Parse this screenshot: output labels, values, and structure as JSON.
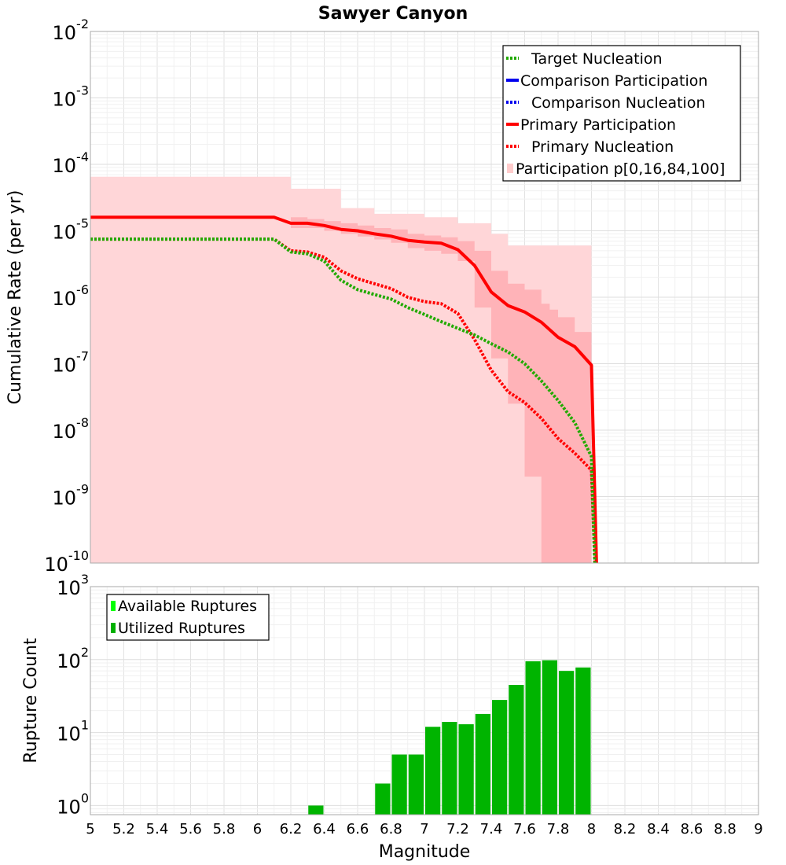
{
  "chart_data": [
    {
      "type": "line",
      "title": "Sawyer Canyon",
      "xlabel": "",
      "ylabel": "Cumulative Rate (per yr)",
      "yscale": "log",
      "xlim": [
        5,
        9
      ],
      "ylim": [
        1e-10,
        0.01
      ],
      "y_tick_labels": [
        {
          "base": "10",
          "exp": "-2"
        },
        {
          "base": "10",
          "exp": "-3"
        },
        {
          "base": "10",
          "exp": "-4"
        },
        {
          "base": "10",
          "exp": "-5"
        },
        {
          "base": "10",
          "exp": "-6"
        },
        {
          "base": "10",
          "exp": "-7"
        },
        {
          "base": "10",
          "exp": "-8"
        },
        {
          "base": "10",
          "exp": "-9"
        },
        {
          "base": "10",
          "exp": "-10"
        }
      ],
      "legend": {
        "position": "top-right",
        "entries": [
          {
            "label": "Target Nucleation",
            "color": "#22aa00",
            "style": "dotted"
          },
          {
            "label": "Comparison Participation",
            "color": "#0000ee",
            "style": "solid"
          },
          {
            "label": "Comparison Nucleation",
            "color": "#0000ee",
            "style": "dotted"
          },
          {
            "label": "Primary Participation",
            "color": "#ff0000",
            "style": "solid"
          },
          {
            "label": "Primary Nucleation",
            "color": "#ff0000",
            "style": "dotted"
          },
          {
            "label": "Participation p[0,16,84,100]",
            "color": "#ffcccc",
            "style": "fill"
          }
        ]
      },
      "bands": [
        {
          "name": "p0-p100",
          "color": "#ffd6d8",
          "x": [
            5.0,
            6.1,
            6.2,
            6.4,
            6.5,
            6.7,
            6.8,
            7.0,
            7.2,
            7.4,
            7.5,
            7.6,
            7.7,
            7.8,
            8.0
          ],
          "lower": [
            1e-10,
            1e-10,
            1e-10,
            1e-10,
            1e-10,
            1e-10,
            1e-10,
            1e-10,
            1e-10,
            1e-10,
            1e-10,
            1e-10,
            1e-10,
            1e-10,
            1e-10
          ],
          "upper": [
            6.5e-05,
            6.5e-05,
            4.3e-05,
            4.3e-05,
            2.2e-05,
            1.8e-05,
            1.8e-05,
            1.6e-05,
            1.3e-05,
            9e-06,
            6e-06,
            6e-06,
            6e-06,
            6e-06,
            6e-06
          ]
        },
        {
          "name": "p16-p84",
          "color": "#ffb3b8",
          "x": [
            5.0,
            6.1,
            6.2,
            6.3,
            6.4,
            6.5,
            6.6,
            6.7,
            6.8,
            6.9,
            7.0,
            7.1,
            7.2,
            7.3,
            7.4,
            7.5,
            7.6,
            7.7,
            7.75,
            7.8,
            7.9,
            8.0
          ],
          "lower": [
            1.6e-05,
            1.6e-05,
            1.1e-05,
            1.1e-05,
            1e-05,
            9e-06,
            8.2e-06,
            7.4e-06,
            6.6e-06,
            5.5e-06,
            5e-06,
            4.5e-06,
            3.5e-06,
            7e-07,
            1.2e-07,
            2.5e-08,
            2e-09,
            1e-10,
            1e-10,
            1e-10,
            1e-10,
            1e-10
          ],
          "upper": [
            1.6e-05,
            1.6e-05,
            1.6e-05,
            1.5e-05,
            1.4e-05,
            1.3e-05,
            1.2e-05,
            1.1e-05,
            1.05e-05,
            9e-06,
            8.5e-06,
            8e-06,
            7e-06,
            5e-06,
            2.5e-06,
            1.6e-06,
            1.3e-06,
            8e-07,
            6.5e-07,
            5e-07,
            3e-07,
            1.5e-07
          ]
        }
      ],
      "series": [
        {
          "name": "Primary Participation",
          "color": "#ff0000",
          "style": "solid",
          "x": [
            5.0,
            6.1,
            6.2,
            6.3,
            6.4,
            6.5,
            6.6,
            6.7,
            6.8,
            6.9,
            7.0,
            7.1,
            7.2,
            7.3,
            7.4,
            7.5,
            7.6,
            7.7,
            7.8,
            7.9,
            8.0,
            8.03
          ],
          "y": [
            1.6e-05,
            1.6e-05,
            1.3e-05,
            1.3e-05,
            1.2e-05,
            1.05e-05,
            1e-05,
            9e-06,
            8.3e-06,
            7.2e-06,
            6.8e-06,
            6.5e-06,
            5.2e-06,
            3e-06,
            1.2e-06,
            7.5e-07,
            6e-07,
            4.2e-07,
            2.5e-07,
            1.8e-07,
            9.5e-08,
            1e-10
          ]
        },
        {
          "name": "Primary Nucleation",
          "color": "#ff0000",
          "style": "dotted",
          "x": [
            5.0,
            6.1,
            6.2,
            6.3,
            6.4,
            6.5,
            6.6,
            6.7,
            6.8,
            6.9,
            7.0,
            7.1,
            7.2,
            7.3,
            7.4,
            7.5,
            7.6,
            7.7,
            7.8,
            7.9,
            8.0,
            8.02
          ],
          "y": [
            7.5e-06,
            7.5e-06,
            5e-06,
            4.8e-06,
            4e-06,
            2.5e-06,
            1.9e-06,
            1.6e-06,
            1.35e-06,
            1e-06,
            8.6e-07,
            8e-07,
            5.7e-07,
            2.3e-07,
            8e-08,
            3.8e-08,
            2.6e-08,
            1.5e-08,
            7.5e-09,
            4.5e-09,
            2.5e-09,
            1e-10
          ]
        },
        {
          "name": "Target Nucleation",
          "color": "#22aa00",
          "style": "dotted",
          "x": [
            5.0,
            6.1,
            6.2,
            6.3,
            6.4,
            6.5,
            6.6,
            6.7,
            6.8,
            6.9,
            7.0,
            7.1,
            7.2,
            7.3,
            7.4,
            7.5,
            7.6,
            7.7,
            7.8,
            7.9,
            8.0,
            8.02
          ],
          "y": [
            7.5e-06,
            7.5e-06,
            4.8e-06,
            4.5e-06,
            3.5e-06,
            1.8e-06,
            1.3e-06,
            1.1e-06,
            9.4e-07,
            7e-07,
            5.5e-07,
            4.3e-07,
            3.4e-07,
            2.7e-07,
            2e-07,
            1.5e-07,
            1e-07,
            5.5e-08,
            2.8e-08,
            1.3e-08,
            4e-09,
            1e-10
          ]
        }
      ]
    },
    {
      "type": "bar",
      "title": "",
      "xlabel": "Magnitude",
      "ylabel": "Rupture Count",
      "yscale": "log",
      "xlim": [
        5,
        9
      ],
      "ylim": [
        0.75,
        1000
      ],
      "x_tick_labels": [
        "5",
        "5.2",
        "5.4",
        "5.6",
        "5.8",
        "6",
        "6.2",
        "6.4",
        "6.6",
        "6.8",
        "7",
        "7.2",
        "7.4",
        "7.6",
        "7.8",
        "8",
        "8.2",
        "8.4",
        "8.6",
        "8.8",
        "9"
      ],
      "y_tick_labels": [
        {
          "base": "10",
          "exp": "3"
        },
        {
          "base": "10",
          "exp": "2"
        },
        {
          "base": "10",
          "exp": "1"
        },
        {
          "base": "10",
          "exp": "0"
        }
      ],
      "legend": {
        "position": "top-left",
        "entries": [
          {
            "label": "Available Ruptures",
            "color": "#00ff00"
          },
          {
            "label": "Utilized Ruptures",
            "color": "#00b000"
          }
        ]
      },
      "bar_width": 0.1,
      "series": [
        {
          "name": "Utilized Ruptures",
          "color": "#00b400",
          "x": [
            6.35,
            6.75,
            6.85,
            6.95,
            7.05,
            7.15,
            7.25,
            7.35,
            7.45,
            7.55,
            7.65,
            7.75,
            7.85,
            7.95
          ],
          "values": [
            1,
            2,
            5,
            5,
            12,
            14,
            13,
            18,
            28,
            45,
            95,
            98,
            70,
            78
          ]
        }
      ]
    }
  ]
}
